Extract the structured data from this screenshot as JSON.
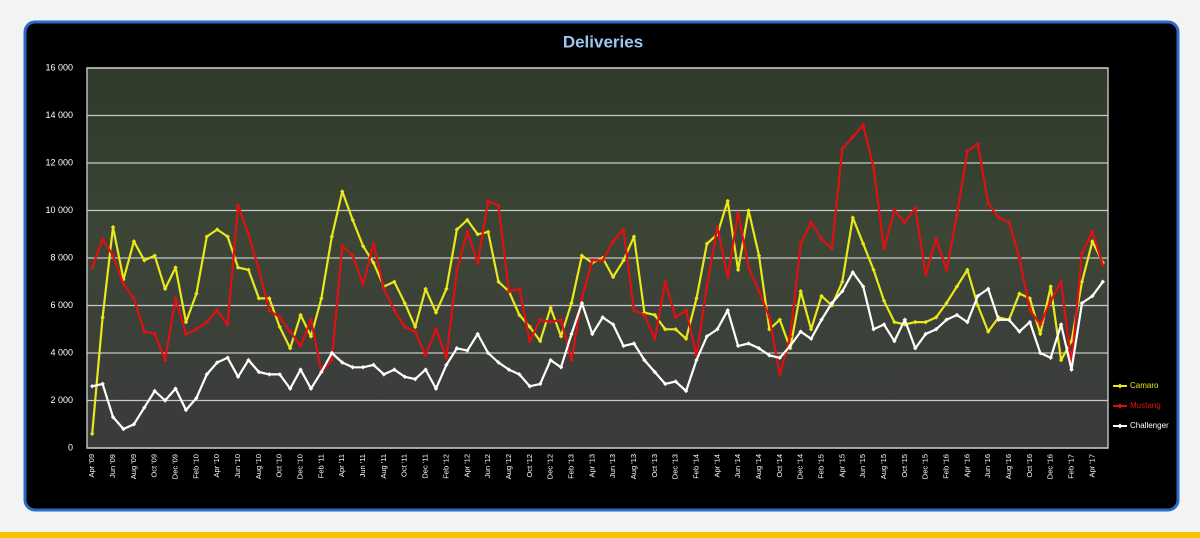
{
  "chart_data": {
    "type": "line",
    "title": "Deliveries",
    "categories": [
      "Apr '09",
      null,
      "Jun '09",
      null,
      "Aug '09",
      null,
      "Oct '09",
      null,
      "Dec '09",
      null,
      "Feb '10",
      null,
      "Apr '10",
      null,
      "Jun '10",
      null,
      "Aug '10",
      null,
      "Oct '10",
      null,
      "Dec '10",
      null,
      "Feb '11",
      null,
      "Apr '11",
      null,
      "Jun '11",
      null,
      "Aug '11",
      null,
      "Oct '11",
      null,
      "Dec '11",
      null,
      "Feb '12",
      null,
      "Apr '12",
      null,
      "Jun '12",
      null,
      "Aug '12",
      null,
      "Oct '12",
      null,
      "Dec '12",
      null,
      "Feb '13",
      null,
      "Apr '13",
      null,
      "Jun '13",
      null,
      "Aug '13",
      null,
      "Oct '13",
      null,
      "Dec '13",
      null,
      "Feb '14",
      null,
      "Apr '14",
      null,
      "Jun '14",
      null,
      "Aug '14",
      null,
      "Oct '14",
      null,
      "Dec '14",
      null,
      "Feb '15",
      null,
      "Apr '15",
      null,
      "Jun '15",
      null,
      "Aug '15",
      null,
      "Oct '15",
      null,
      "Dec '15",
      null,
      "Feb '16",
      null,
      "Apr '16",
      null,
      "Jun '16",
      null,
      "Aug '16",
      null,
      "Oct '16",
      null,
      "Dec '16",
      null,
      "Feb '17",
      null,
      "Apr '17",
      null
    ],
    "series": [
      {
        "name": "Camaro",
        "color": "#e8e81a",
        "values": [
          600,
          5500,
          9300,
          7100,
          8700,
          7900,
          8100,
          6700,
          7600,
          5300,
          6500,
          8900,
          9200,
          8900,
          7600,
          7500,
          6300,
          6300,
          5100,
          4200,
          5600,
          4700,
          6300,
          8900,
          10800,
          9600,
          8500,
          7800,
          6800,
          7000,
          6100,
          5100,
          6700,
          5700,
          6700,
          9200,
          9600,
          9000,
          9100,
          7000,
          6600,
          5600,
          5100,
          4500,
          5900,
          4700,
          6100,
          8100,
          7800,
          8000,
          7200,
          7900,
          8900,
          5700,
          5600,
          5000,
          5000,
          4600,
          6300,
          8600,
          9000,
          10400,
          7500,
          10000,
          8100,
          5000,
          5400,
          4200,
          6600,
          5000,
          6400,
          6000,
          7000,
          9700,
          8600,
          7500,
          6200,
          5300,
          5200,
          5300,
          5300,
          5500,
          6100,
          6800,
          7500,
          6000,
          4900,
          5500,
          5400,
          6500,
          6300,
          4800,
          6800,
          3700,
          4500,
          7000,
          8700,
          7800
        ]
      },
      {
        "name": "Mustang",
        "color": "#e01010",
        "values": [
          7600,
          8800,
          8100,
          6900,
          6300,
          4900,
          4800,
          3700,
          6300,
          4800,
          5000,
          5300,
          5800,
          5200,
          10200,
          9000,
          7500,
          5800,
          5500,
          4900,
          4300,
          5400,
          3200,
          3700,
          8500,
          8100,
          6900,
          8600,
          6700,
          5800,
          5100,
          4900,
          3900,
          5000,
          3800,
          7500,
          9100,
          7800,
          10400,
          10200,
          6600,
          6700,
          4500,
          5400,
          5300,
          5400,
          3700,
          6300,
          7900,
          7900,
          8700,
          9200,
          5800,
          5600,
          4600,
          7000,
          5500,
          5800,
          3900,
          6800,
          9300,
          7200,
          9900,
          7600,
          6600,
          5500,
          3100,
          4700,
          8600,
          9500,
          8800,
          8400,
          12600,
          13100,
          13600,
          11800,
          8400,
          10000,
          9500,
          10100,
          7300,
          8800,
          7500,
          9800,
          12500,
          12800,
          10300,
          9700,
          9500,
          8000,
          5800,
          5200,
          6200,
          7000,
          3500,
          8200,
          9100,
          7700
        ]
      },
      {
        "name": "Challenger",
        "color": "#ffffff",
        "values": [
          2600,
          2700,
          1300,
          800,
          1000,
          1700,
          2400,
          2000,
          2500,
          1600,
          2100,
          3100,
          3600,
          3800,
          3000,
          3700,
          3200,
          3100,
          3100,
          2500,
          3300,
          2500,
          3200,
          4000,
          3600,
          3400,
          3400,
          3500,
          3100,
          3300,
          3000,
          2900,
          3300,
          2500,
          3500,
          4200,
          4100,
          4800,
          4000,
          3600,
          3300,
          3100,
          2600,
          2700,
          3700,
          3400,
          4800,
          6100,
          4800,
          5500,
          5200,
          4300,
          4400,
          3700,
          3200,
          2700,
          2800,
          2400,
          3700,
          4700,
          5000,
          5800,
          4300,
          4400,
          4200,
          3900,
          3800,
          4300,
          4900,
          4600,
          5400,
          6100,
          6600,
          7400,
          6800,
          5000,
          5200,
          4500,
          5400,
          4200,
          4800,
          5000,
          5400,
          5600,
          5300,
          6400,
          6700,
          5400,
          5400,
          4900,
          5300,
          4000,
          3800,
          5200,
          3300,
          6100,
          6400,
          7000
        ]
      }
    ],
    "ylim": [
      0,
      16000
    ],
    "yticks": [
      0,
      {
        "value": 2000,
        "label": "2 000"
      },
      {
        "value": 4000,
        "label": "4 000"
      },
      {
        "value": 6000,
        "label": "6 000"
      },
      {
        "value": 8000,
        "label": "8 000"
      },
      {
        "value": 10000,
        "label": "10 000"
      },
      {
        "value": 12000,
        "label": "12 000"
      },
      {
        "value": 14000,
        "label": "14 000"
      },
      {
        "value": 16000,
        "label": "16 000"
      }
    ],
    "grid": true,
    "legend": "right"
  }
}
